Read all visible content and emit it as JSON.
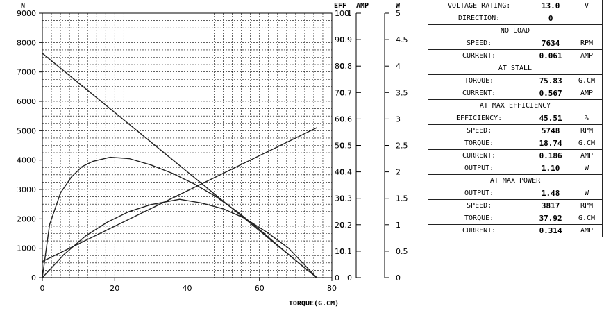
{
  "chart_data": {
    "type": "line",
    "xlabel": "TORQUE(G.CM)",
    "x_ticks": [
      "0",
      "20",
      "40",
      "60",
      "80"
    ],
    "xlim": [
      0,
      80
    ],
    "axes": {
      "speed": {
        "title": "N",
        "ticks": [
          "0",
          "1000",
          "2000",
          "3000",
          "4000",
          "5000",
          "6000",
          "7000",
          "8000",
          "9000"
        ],
        "range": [
          0,
          9000
        ]
      },
      "efficiency": {
        "title": "EFF",
        "ticks": [
          "0",
          "10",
          "20",
          "30",
          "40",
          "50",
          "60",
          "70",
          "80",
          "90",
          "100"
        ],
        "range": [
          0,
          100
        ]
      },
      "current": {
        "title": "AMP",
        "ticks": [
          "0",
          "0.1",
          "0.2",
          "0.3",
          "0.4",
          "0.5",
          "0.6",
          "0.7",
          "0.8",
          "0.9",
          "1"
        ],
        "range": [
          0,
          1
        ]
      },
      "power": {
        "title": "W",
        "ticks": [
          "0",
          "0.5",
          "1",
          "1.5",
          "2",
          "2.5",
          "3",
          "3.5",
          "4",
          "4.5",
          "5"
        ],
        "range": [
          0,
          5
        ]
      }
    },
    "series": [
      {
        "axis": "speed",
        "x": [
          0,
          75.83
        ],
        "values": [
          7634,
          0
        ]
      },
      {
        "axis": "current",
        "x": [
          0,
          75.83
        ],
        "values": [
          0.061,
          0.567
        ]
      },
      {
        "axis": "efficiency",
        "x": [
          0,
          2,
          5,
          8,
          11,
          14,
          18.74,
          24,
          30,
          36,
          42,
          48,
          54,
          60,
          66,
          72,
          75.83
        ],
        "values": [
          0,
          20,
          32,
          38,
          42,
          44,
          45.5,
          45,
          42.6,
          39.4,
          35.4,
          30.6,
          24.8,
          18.2,
          11.1,
          4.2,
          0
        ]
      },
      {
        "axis": "power",
        "x": [
          0,
          6,
          12,
          18,
          24,
          30,
          37.92,
          44,
          50,
          56,
          62,
          68,
          75.83
        ],
        "values": [
          0,
          0.44,
          0.79,
          1.05,
          1.25,
          1.38,
          1.48,
          1.41,
          1.3,
          1.12,
          0.86,
          0.56,
          0
        ]
      }
    ]
  },
  "specs": {
    "voltage": {
      "label": "VOLTAGE RATING:",
      "value": "13.0",
      "unit": "V"
    },
    "direction": {
      "label": "DIRECTION:",
      "value": "0"
    },
    "no_load": {
      "header": "NO LOAD",
      "speed": {
        "label": "SPEED:",
        "value": "7634",
        "unit": "RPM"
      },
      "current": {
        "label": "CURRENT:",
        "value": "0.061",
        "unit": "AMP"
      }
    },
    "stall": {
      "header": "AT STALL",
      "torque": {
        "label": "TORQUE:",
        "value": "75.83",
        "unit": "G.CM"
      },
      "current": {
        "label": "CURRENT:",
        "value": "0.567",
        "unit": "AMP"
      }
    },
    "max_eff": {
      "header": "AT MAX EFFICIENCY",
      "efficiency": {
        "label": "EFFICIENCY:",
        "value": "45.51",
        "unit": "%"
      },
      "speed": {
        "label": "SPEED:",
        "value": "5748",
        "unit": "RPM"
      },
      "torque": {
        "label": "TORQUE:",
        "value": "18.74",
        "unit": "G.CM"
      },
      "current": {
        "label": "CURRENT:",
        "value": "0.186",
        "unit": "AMP"
      },
      "output": {
        "label": "OUTPUT:",
        "value": "1.10",
        "unit": "W"
      }
    },
    "max_power": {
      "header": "AT MAX POWER",
      "output": {
        "label": "OUTPUT:",
        "value": "1.48",
        "unit": "W"
      },
      "speed": {
        "label": "SPEED:",
        "value": "3817",
        "unit": "RPM"
      },
      "torque": {
        "label": "TORQUE:",
        "value": "37.92",
        "unit": "G.CM"
      },
      "current": {
        "label": "CURRENT:",
        "value": "0.314",
        "unit": "AMP"
      }
    }
  }
}
